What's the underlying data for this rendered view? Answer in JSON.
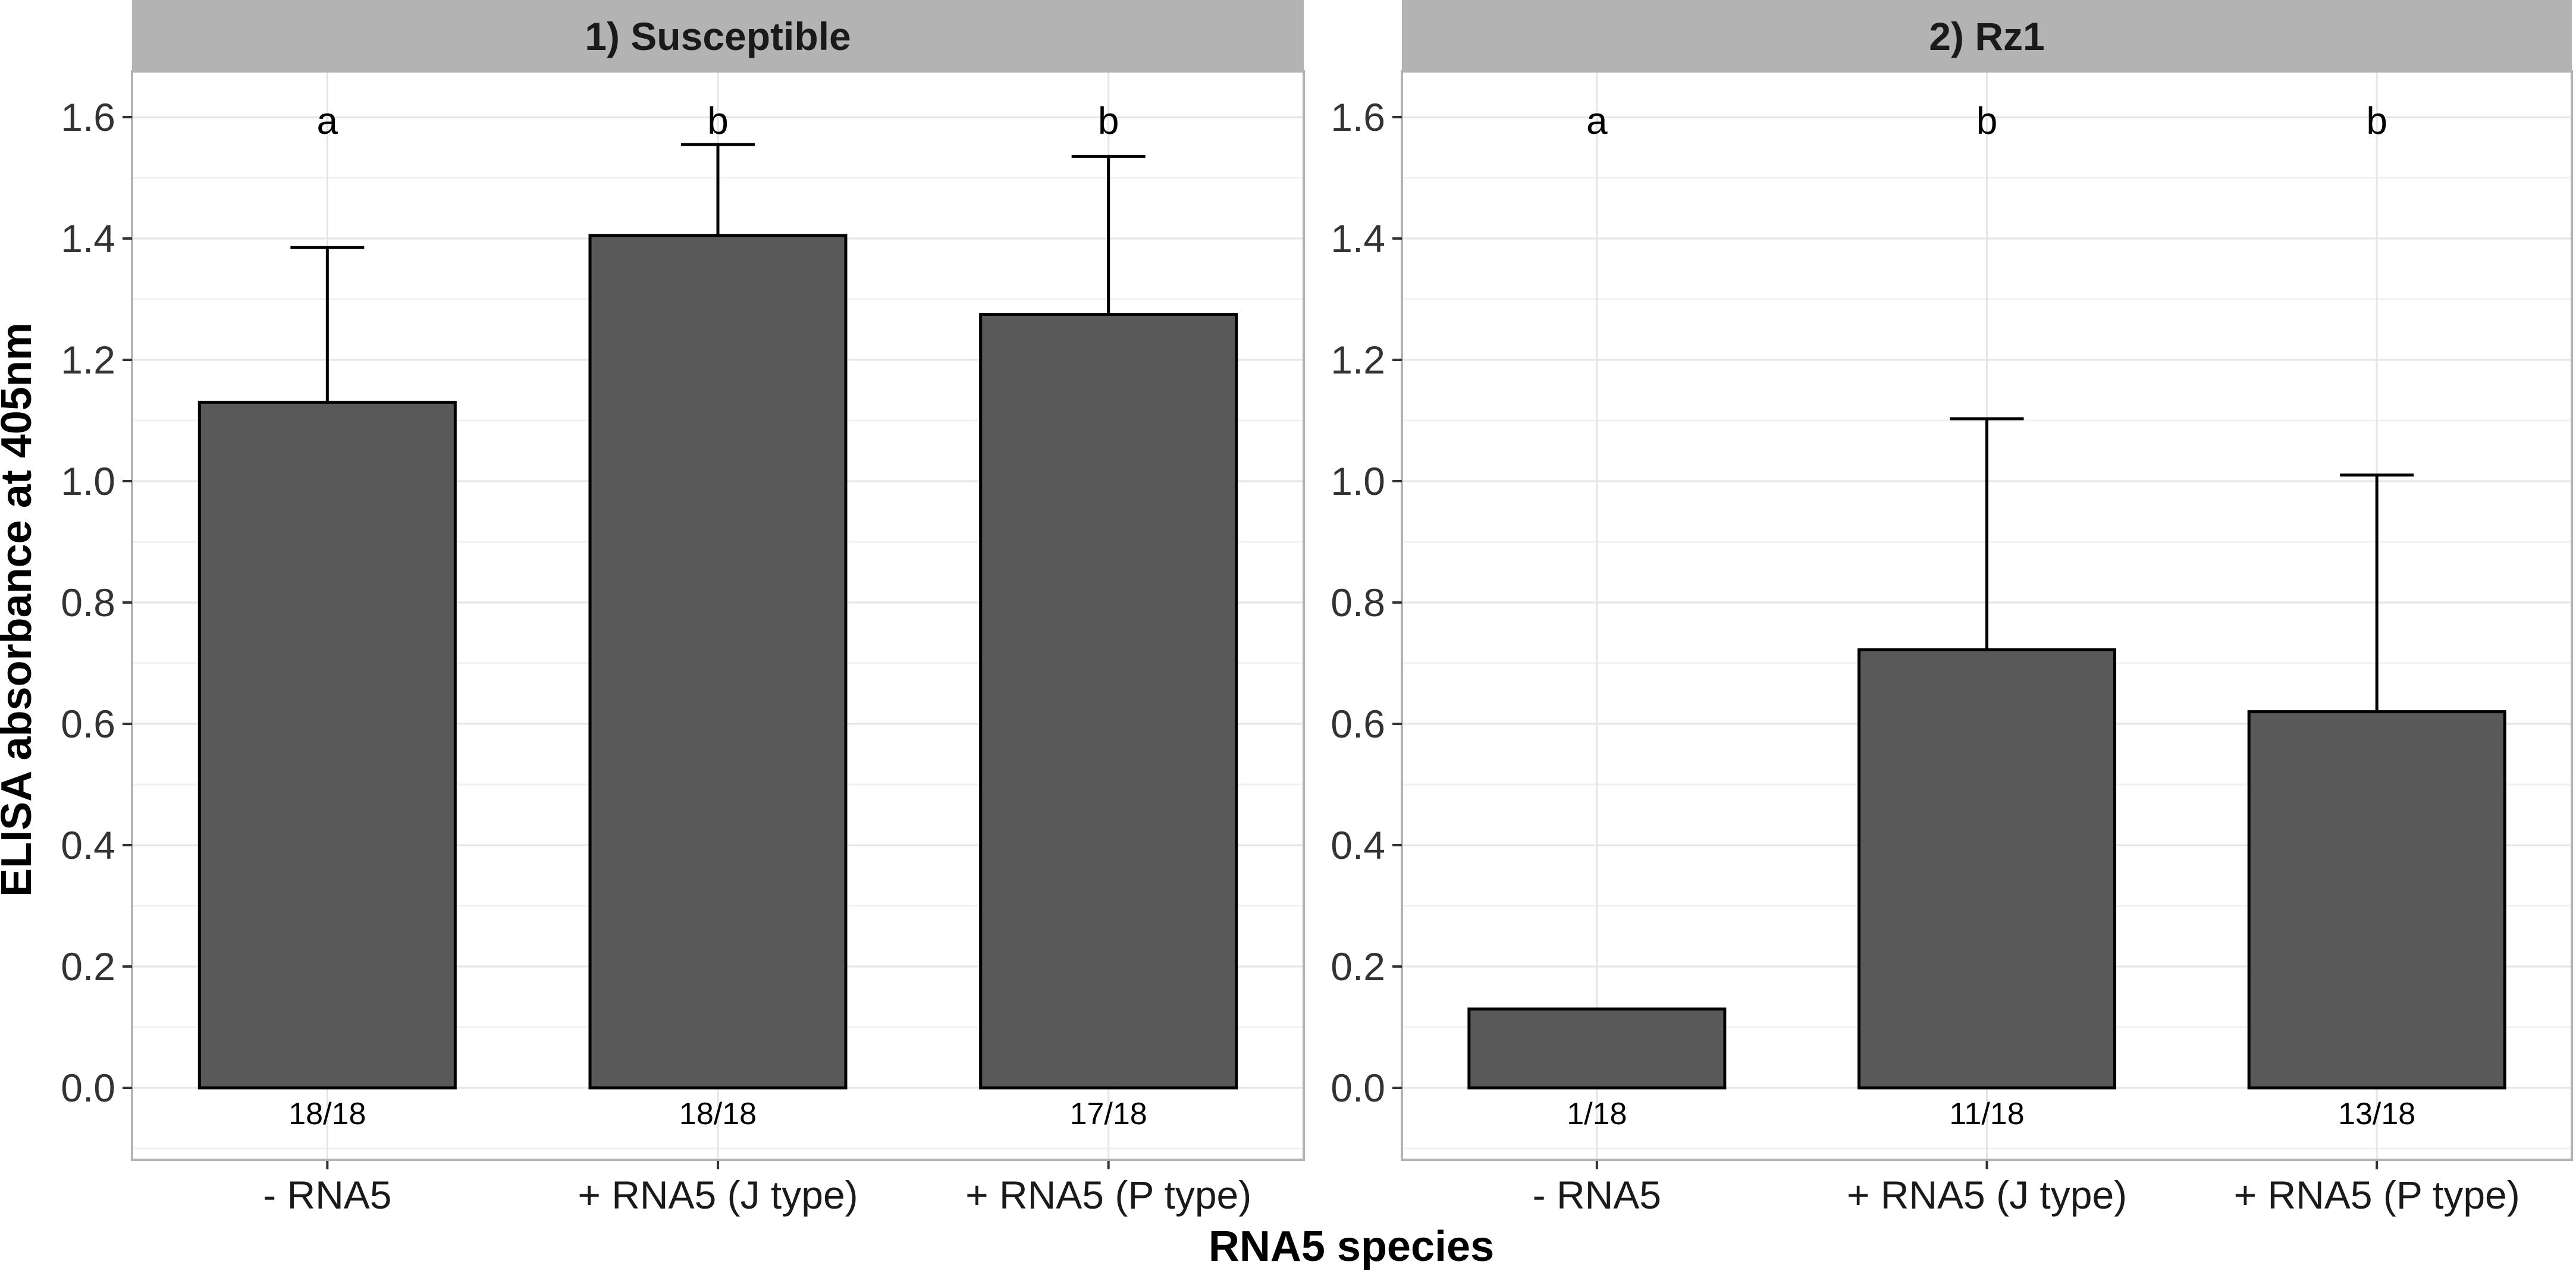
{
  "chart_data": {
    "type": "bar",
    "title": "",
    "ylabel": "ELISA absorbance at 405nm",
    "xlabel": "RNA5 species",
    "ylim": [
      -0.12,
      1.68
    ],
    "yticks": [
      "0.0",
      "0.2",
      "0.4",
      "0.6",
      "0.8",
      "1.0",
      "1.2",
      "1.4",
      "1.6"
    ],
    "grid": true,
    "categories": [
      "- RNA5",
      "+ RNA5 (J type)",
      "+ RNA5 (P type)"
    ],
    "bar_color": "#595959",
    "panels": [
      {
        "title": "1) Susceptible",
        "values": [
          1.13,
          1.405,
          1.275
        ],
        "error_upper": [
          1.385,
          1.555,
          1.535
        ],
        "letters": [
          "a",
          "b",
          "b"
        ],
        "counts": [
          "18/18",
          "18/18",
          "17/18"
        ]
      },
      {
        "title": "2) Rz1",
        "values": [
          0.13,
          0.722,
          0.62
        ],
        "error_upper": [
          0.13,
          1.103,
          1.01
        ],
        "letters": [
          "a",
          "b",
          "b"
        ],
        "counts": [
          "1/18",
          "11/18",
          "13/18"
        ]
      }
    ]
  }
}
